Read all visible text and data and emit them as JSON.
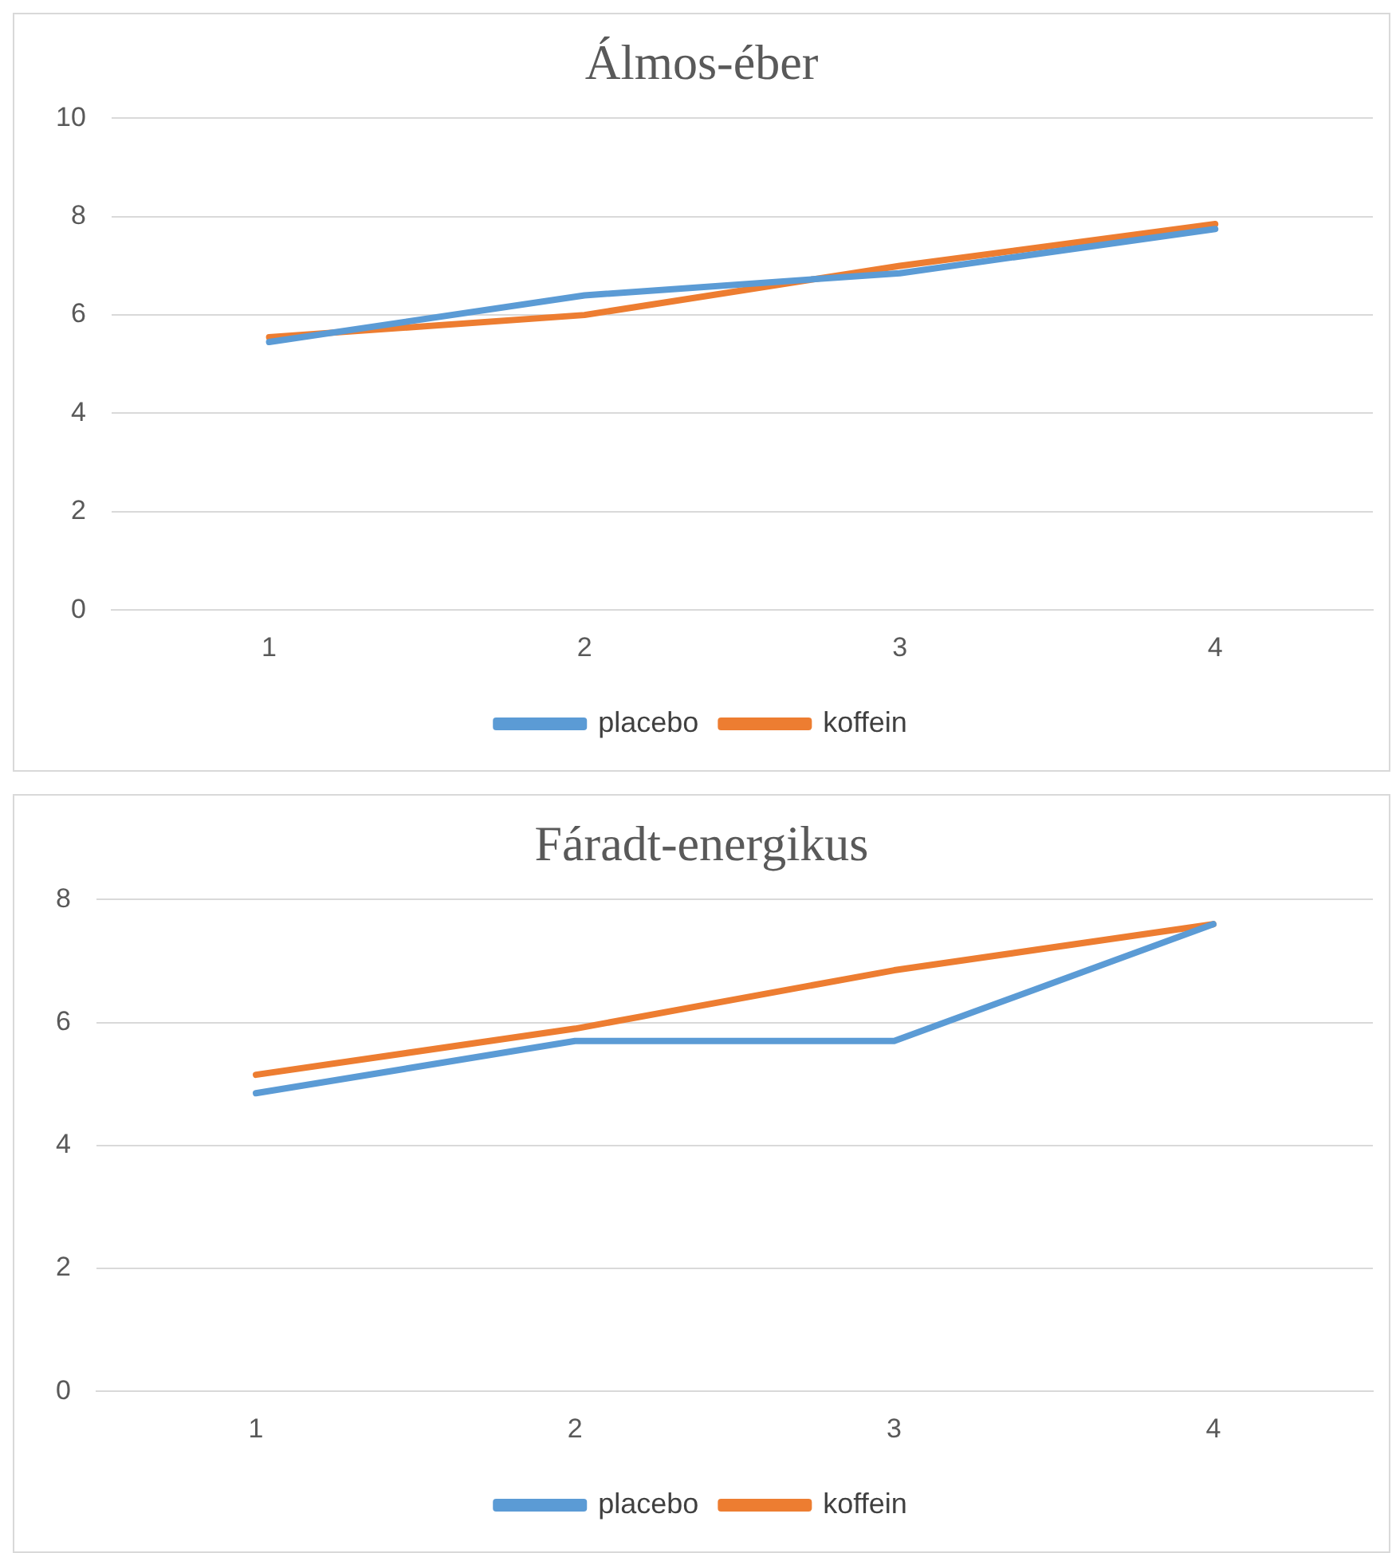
{
  "chart_data": [
    {
      "type": "line",
      "title": "Álmos-éber",
      "categories": [
        "1",
        "2",
        "3",
        "4"
      ],
      "series": [
        {
          "name": "placebo",
          "color": "#5b9bd5",
          "values": [
            5.45,
            6.4,
            6.85,
            7.75
          ]
        },
        {
          "name": "koffein",
          "color": "#ed7d31",
          "values": [
            5.55,
            6.0,
            7.0,
            7.85
          ]
        }
      ],
      "ylim": [
        0,
        10
      ],
      "yticks": [
        0,
        2,
        4,
        6,
        8,
        10
      ],
      "grid": "y",
      "legend": "bottom",
      "marker": "none",
      "line_style": "solid"
    },
    {
      "type": "line",
      "title": "Fáradt-energikus",
      "categories": [
        "1",
        "2",
        "3",
        "4"
      ],
      "series": [
        {
          "name": "placebo",
          "color": "#5b9bd5",
          "values": [
            4.85,
            5.7,
            5.7,
            7.6
          ]
        },
        {
          "name": "koffein",
          "color": "#ed7d31",
          "values": [
            5.15,
            5.9,
            6.85,
            7.6
          ]
        }
      ],
      "ylim": [
        0,
        8
      ],
      "yticks": [
        0,
        2,
        4,
        6,
        8
      ],
      "grid": "y",
      "legend": "bottom",
      "marker": "none",
      "line_style": "solid"
    }
  ]
}
